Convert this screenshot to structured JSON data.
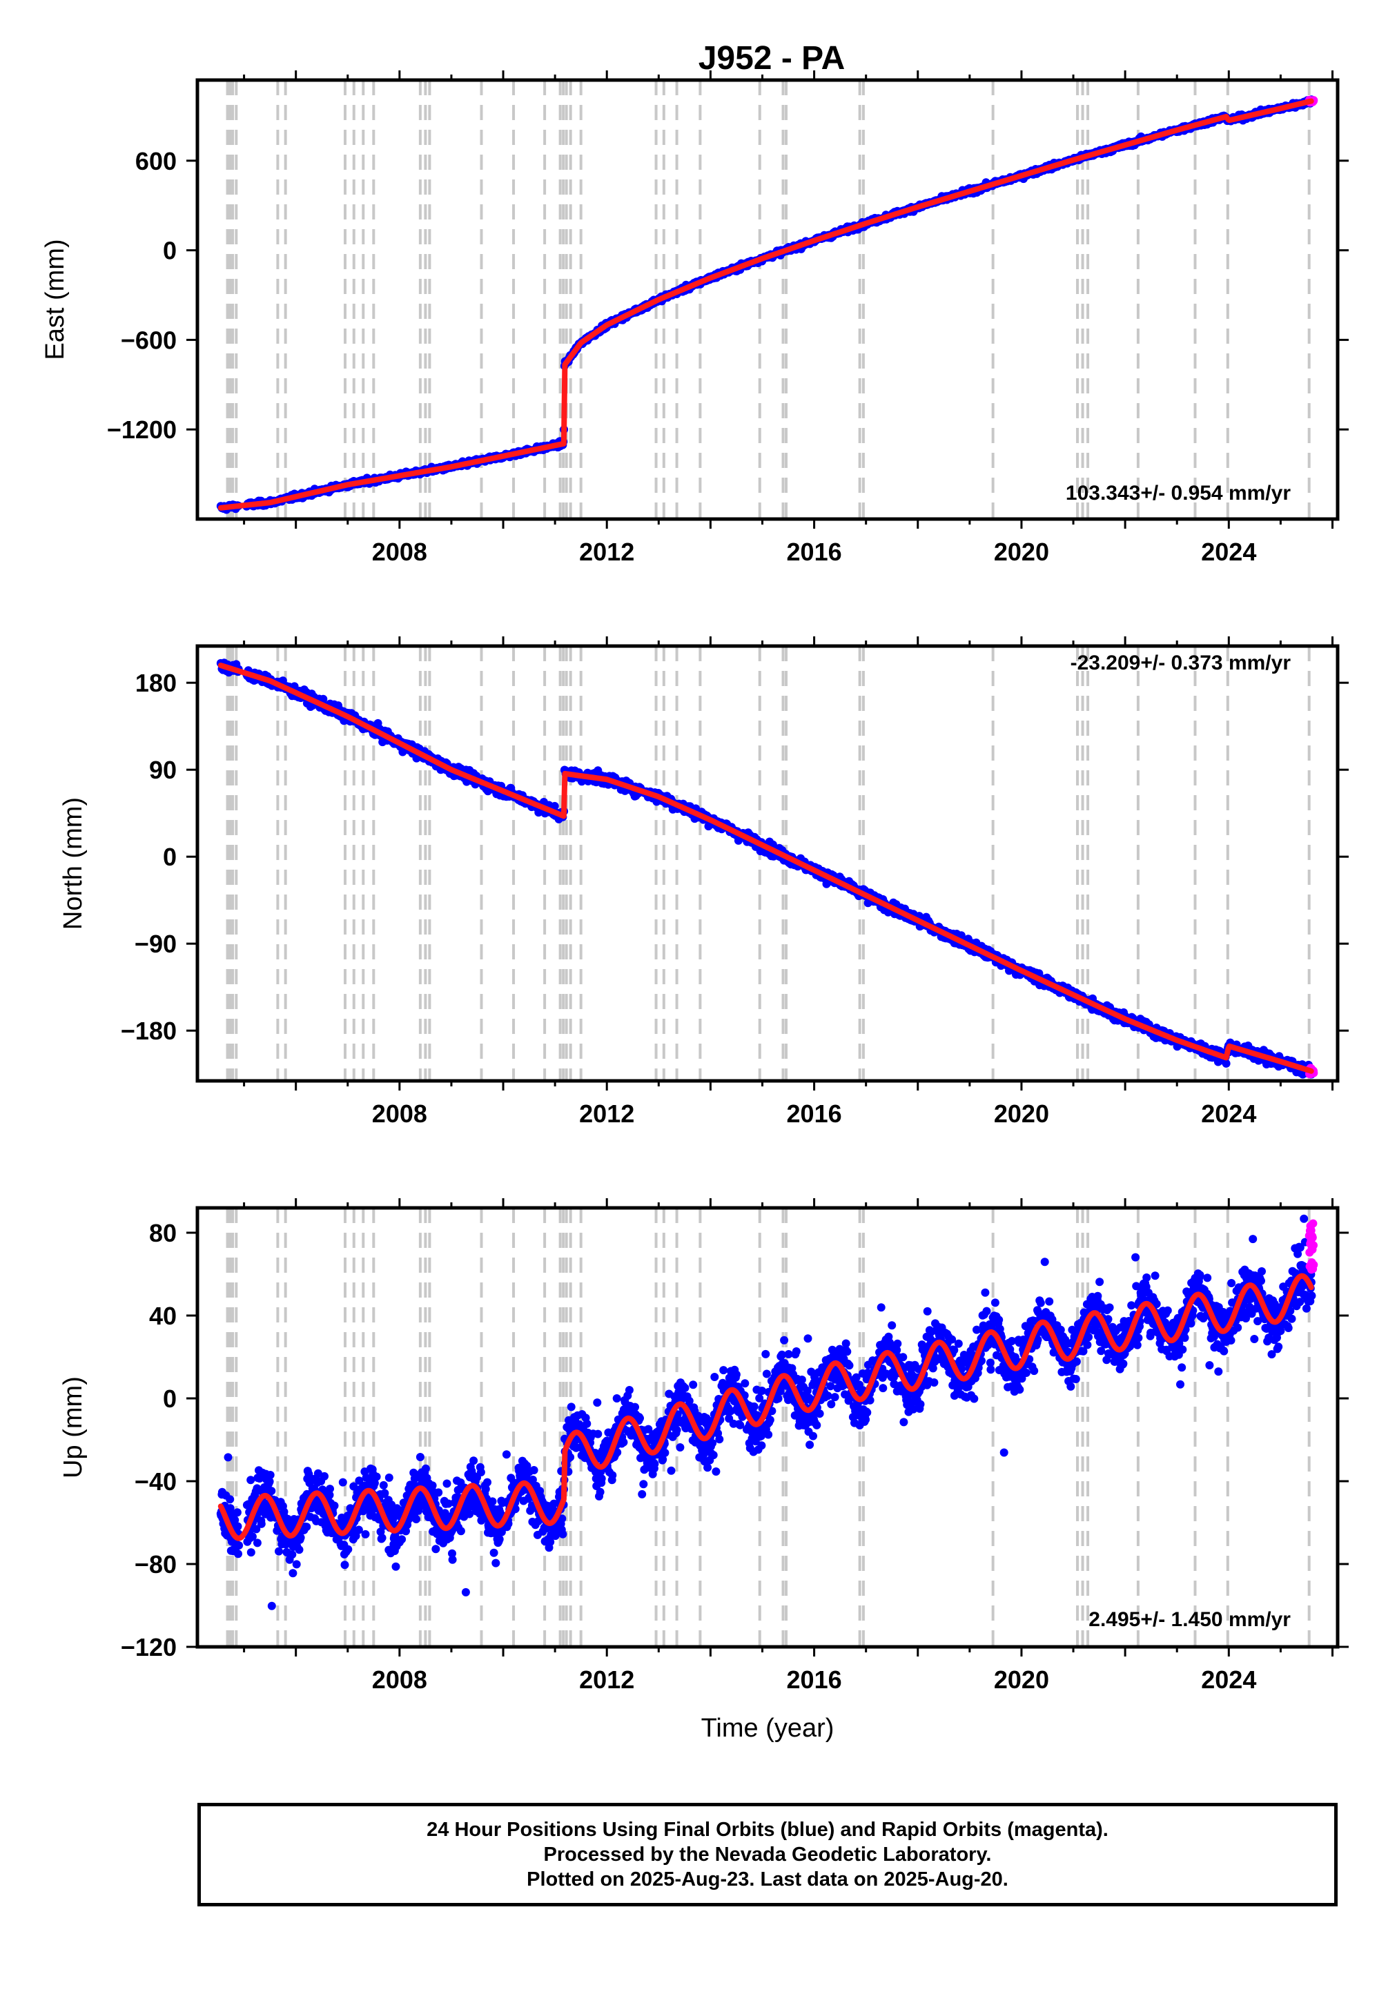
{
  "title": "J952 - PA",
  "footer": {
    "line1": "24 Hour Positions Using Final Orbits (blue) and Rapid Orbits (magenta).",
    "line2": "Processed by the Nevada Geodetic Laboratory.",
    "line3": "Plotted on 2025-Aug-23. Last data on 2025-Aug-20."
  },
  "colors": {
    "final": "#0000ff",
    "rapid": "#ff00ff",
    "fit": "#ff1a1a",
    "event_lines": "#c8c8c8"
  },
  "chart_data": [
    {
      "type": "scatter",
      "ylabel": "East (mm)",
      "xlabel": "",
      "rate_text": "103.343+/- 0.954 mm/yr",
      "xlim": [
        2004.1,
        2026.1
      ],
      "ylim": [
        -1800,
        1140
      ],
      "xticks": [
        "2008",
        "2012",
        "2016",
        "2020",
        "2024"
      ],
      "xtick_values": [
        2008,
        2012,
        2016,
        2020,
        2024
      ],
      "yticks": [
        "600",
        "0",
        "−600",
        "−1200"
      ],
      "ytick_values": [
        600,
        0,
        -600,
        -1200
      ],
      "trend": [
        [
          2004.55,
          -1725
        ],
        [
          2005.5,
          -1690
        ],
        [
          2007.0,
          -1570
        ],
        [
          2009.0,
          -1450
        ],
        [
          2011.17,
          -1295
        ],
        [
          2011.18,
          -770
        ],
        [
          2011.5,
          -620
        ],
        [
          2012.0,
          -500
        ],
        [
          2013.0,
          -330
        ],
        [
          2014.0,
          -185
        ],
        [
          2015.0,
          -55
        ],
        [
          2016.0,
          65
        ],
        [
          2017.0,
          180
        ],
        [
          2018.0,
          290
        ],
        [
          2019.0,
          395
        ],
        [
          2020.0,
          500
        ],
        [
          2021.0,
          605
        ],
        [
          2022.0,
          705
        ],
        [
          2023.0,
          805
        ],
        [
          2023.95,
          895
        ],
        [
          2024.0,
          870
        ],
        [
          2025.0,
          950
        ],
        [
          2025.6,
          1000
        ]
      ]
    },
    {
      "type": "scatter",
      "ylabel": "North (mm)",
      "xlabel": "",
      "rate_text": "-23.209+/- 0.373 mm/yr",
      "xlim": [
        2004.1,
        2026.1
      ],
      "ylim": [
        -232,
        218
      ],
      "xticks": [
        "2008",
        "2012",
        "2016",
        "2020",
        "2024"
      ],
      "xtick_values": [
        2008,
        2012,
        2016,
        2020,
        2024
      ],
      "yticks": [
        "180",
        "90",
        "0",
        "−90",
        "−180"
      ],
      "ytick_values": [
        180,
        90,
        0,
        -90,
        -180
      ],
      "trend": [
        [
          2004.55,
          198
        ],
        [
          2005.5,
          182
        ],
        [
          2007.0,
          145
        ],
        [
          2009.0,
          90
        ],
        [
          2011.17,
          42
        ],
        [
          2011.18,
          86
        ],
        [
          2012.0,
          80
        ],
        [
          2013.0,
          62
        ],
        [
          2014.0,
          38
        ],
        [
          2015.0,
          12
        ],
        [
          2016.0,
          -14
        ],
        [
          2017.0,
          -40
        ],
        [
          2018.0,
          -66
        ],
        [
          2019.0,
          -92
        ],
        [
          2020.0,
          -118
        ],
        [
          2021.0,
          -143
        ],
        [
          2022.0,
          -168
        ],
        [
          2023.0,
          -190
        ],
        [
          2023.95,
          -208
        ],
        [
          2024.0,
          -196
        ],
        [
          2025.0,
          -212
        ],
        [
          2025.6,
          -222
        ]
      ]
    },
    {
      "type": "scatter",
      "ylabel": "Up (mm)",
      "xlabel": "Time (year)",
      "rate_text": "2.495+/- 1.450 mm/yr",
      "xlim": [
        2004.1,
        2026.1
      ],
      "ylim": [
        -120,
        92
      ],
      "xticks": [
        "2008",
        "2012",
        "2016",
        "2020",
        "2024"
      ],
      "xtick_values": [
        2008,
        2012,
        2016,
        2020,
        2024
      ],
      "yticks": [
        "80",
        "40",
        "0",
        "−40",
        "−80",
        "−120"
      ],
      "ytick_values": [
        80,
        40,
        0,
        -40,
        -80,
        -120
      ],
      "trend_linear": {
        "anchors": [
          [
            2004.55,
            -58
          ],
          [
            2011.17,
            -50
          ],
          [
            2011.18,
            -28
          ],
          [
            2016.0,
            5
          ],
          [
            2020.0,
            25
          ],
          [
            2025.6,
            50
          ]
        ],
        "seasonal_amplitude": 10
      }
    }
  ],
  "event_years": [
    2004.68,
    2004.73,
    2004.78,
    2004.85,
    2005.65,
    2005.8,
    2006.95,
    2007.12,
    2007.3,
    2007.5,
    2008.4,
    2008.5,
    2008.58,
    2009.58,
    2010.2,
    2010.8,
    2011.1,
    2011.16,
    2011.22,
    2011.3,
    2011.5,
    2012.95,
    2013.1,
    2013.35,
    2013.8,
    2014.95,
    2015.4,
    2015.46,
    2016.88,
    2016.95,
    2019.45,
    2021.08,
    2021.18,
    2021.28,
    2022.25,
    2023.35,
    2023.98,
    2025.55
  ]
}
